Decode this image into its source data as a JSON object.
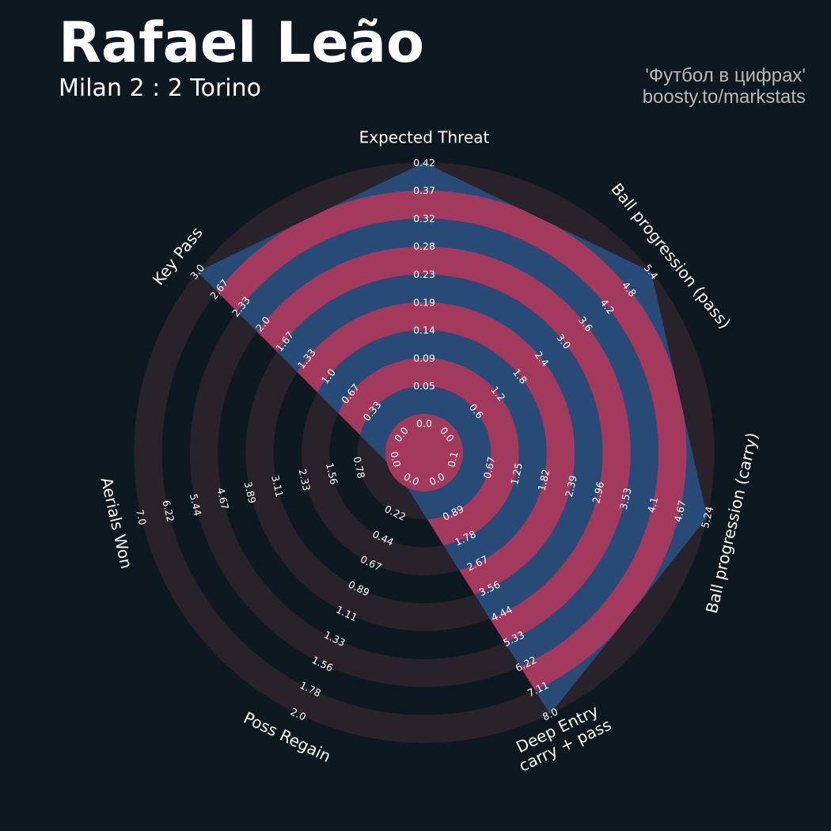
{
  "header": {
    "title": "Rafael Leão",
    "subtitle": "Milan 2 : 2 Torino",
    "credit_line1": "'Футбол в цифрах'",
    "credit_line2": "boosty.to/markstats"
  },
  "colors": {
    "background": "#0e1820",
    "ring_band": "#28222b",
    "grid_band": "#a33a5e",
    "player_area": "#274a77",
    "text": "#ffffff"
  },
  "chart_data": {
    "type": "radar",
    "axes": [
      {
        "label": "Expected Threat",
        "label_lines": [
          "Expected Threat"
        ],
        "min": 0.0,
        "max": 0.42,
        "ticks": [
          "0.0",
          "0.05",
          "0.09",
          "0.14",
          "0.19",
          "0.23",
          "0.28",
          "0.32",
          "0.37",
          "0.42"
        ],
        "value": 0.42
      },
      {
        "label": "Ball progression (pass)",
        "label_lines": [
          "Ball progression (pass)"
        ],
        "min": 0.0,
        "max": 5.4,
        "ticks": [
          "0.0",
          "0.6",
          "1.2",
          "1.8",
          "2.4",
          "3.0",
          "3.6",
          "4.2",
          "4.8",
          "5.4"
        ],
        "value": 5.4
      },
      {
        "label": "Ball progression (carry)",
        "label_lines": [
          "Ball progression (carry)"
        ],
        "min": 0.1,
        "max": 5.24,
        "ticks": [
          "0.1",
          "0.67",
          "1.25",
          "1.82",
          "2.39",
          "2.96",
          "3.53",
          "4.1",
          "4.67",
          "5.24"
        ],
        "value": 5.24
      },
      {
        "label": "Deep Entry carry + pass",
        "label_lines": [
          "Deep Entry",
          "carry + pass"
        ],
        "min": 0.0,
        "max": 8.0,
        "ticks": [
          "0.0",
          "0.89",
          "1.78",
          "2.67",
          "3.56",
          "4.44",
          "5.33",
          "6.22",
          "7.11",
          "8.0"
        ],
        "value": 8.0
      },
      {
        "label": "Poss Regain",
        "label_lines": [
          "Poss Regain"
        ],
        "min": 0.0,
        "max": 2.0,
        "ticks": [
          "0.0",
          "0.22",
          "0.44",
          "0.67",
          "0.89",
          "1.11",
          "1.33",
          "1.56",
          "1.78",
          "2.0"
        ],
        "value": 0.0
      },
      {
        "label": "Aerials Won",
        "label_lines": [
          "Aerials Won"
        ],
        "min": 0.0,
        "max": 7.0,
        "ticks": [
          "0.0",
          "0.78",
          "1.56",
          "2.33",
          "3.11",
          "3.89",
          "4.67",
          "5.44",
          "6.22",
          "7.0"
        ],
        "value": 0.0
      },
      {
        "label": "Key Pass",
        "label_lines": [
          "Key Pass"
        ],
        "min": 0.0,
        "max": 3.0,
        "ticks": [
          "0.0",
          "0.33",
          "0.67",
          "1.0",
          "1.33",
          "1.67",
          "2.0",
          "2.33",
          "2.67",
          "3.0"
        ],
        "value": 3.0
      }
    ]
  }
}
